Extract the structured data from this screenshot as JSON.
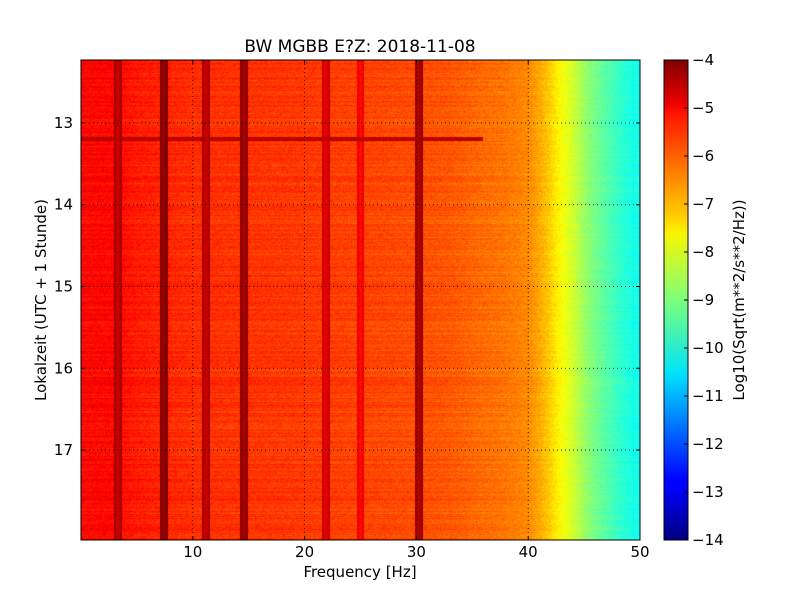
{
  "chart_data": {
    "type": "heatmap",
    "title": "BW MGBB E?Z: 2018-11-08",
    "xlabel": "Frequency [Hz]",
    "ylabel": "Lokalzeit (UTC + 1 Stunde)",
    "xlim": [
      0,
      50
    ],
    "ylim": [
      12.23,
      18.1
    ],
    "y_inverted": true,
    "x_ticks": [
      10,
      20,
      30,
      40,
      50
    ],
    "x_tick_labels": [
      "10",
      "20",
      "30",
      "40",
      "50"
    ],
    "y_ticks": [
      13,
      14,
      15,
      16,
      17
    ],
    "y_tick_labels": [
      "13",
      "14",
      "15",
      "16",
      "17"
    ],
    "grid": true,
    "colormap": "jet",
    "colorbar": {
      "label": "Log10(Sqrt(m**2/s**2/Hz))",
      "range": [
        -14,
        -4
      ],
      "ticks": [
        -4,
        -5,
        -6,
        -7,
        -8,
        -9,
        -10,
        -11,
        -12,
        -13,
        -14
      ],
      "tick_labels": [
        "−4",
        "−5",
        "−6",
        "−7",
        "−8",
        "−9",
        "−10",
        "−11",
        "−12",
        "−13",
        "−14"
      ]
    },
    "spectrum_profile": {
      "frequency_hz": [
        0,
        3,
        5,
        10,
        15,
        20,
        25,
        30,
        33,
        36,
        38,
        40,
        41,
        42,
        43,
        44,
        45,
        46,
        47,
        48,
        49,
        50
      ],
      "log10_amplitude": [
        -5.3,
        -5.3,
        -5.5,
        -5.7,
        -5.75,
        -5.8,
        -5.9,
        -6.0,
        -6.1,
        -6.3,
        -6.4,
        -6.6,
        -6.9,
        -7.3,
        -7.8,
        -8.2,
        -8.7,
        -9.1,
        -9.4,
        -9.7,
        -9.95,
        -10.1
      ]
    },
    "persistent_lines": [
      {
        "frequency_hz": 3.3,
        "log10_amplitude": -4.8
      },
      {
        "frequency_hz": 7.4,
        "log10_amplitude": -4.3
      },
      {
        "frequency_hz": 11.2,
        "log10_amplitude": -4.8
      },
      {
        "frequency_hz": 14.6,
        "log10_amplitude": -4.5
      },
      {
        "frequency_hz": 21.9,
        "log10_amplitude": -5.1
      },
      {
        "frequency_hz": 25.0,
        "log10_amplitude": -5.4
      },
      {
        "frequency_hz": 30.2,
        "log10_amplitude": -4.6
      }
    ],
    "transient_events": [
      {
        "time_h": 13.2,
        "log10_amplitude": -4.6
      }
    ]
  },
  "colors": {
    "background": "#ffffff",
    "axes": "#000000",
    "grid": "#000000"
  }
}
